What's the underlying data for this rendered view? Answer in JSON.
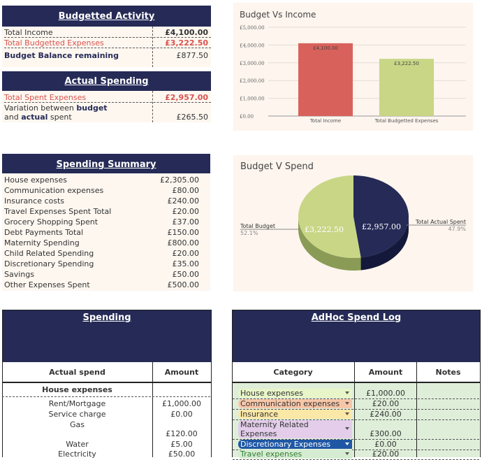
{
  "budget_activity": {
    "title": "Budgetted Activity",
    "rows": [
      {
        "label": "Total Income",
        "value": "£4,100.00"
      },
      {
        "label": "Total Budgetted Expenses",
        "value": "£3,222.50"
      },
      {
        "label": "Budget Balance remaining",
        "value": "£877.50"
      }
    ]
  },
  "actual_spending": {
    "title": "Actual Spending",
    "spent_label": "Total Spent Expenses",
    "spent_value": "£2,957.00",
    "variation_line1_pre": "Variation between ",
    "variation_line1_bold": "budget",
    "variation_line2_pre": " and ",
    "variation_line2_bold": "actual",
    "variation_line2_post": " spent",
    "variation_value": "£265.50"
  },
  "spending_summary": {
    "title": "Spending Summary",
    "rows": [
      {
        "label": "House expenses",
        "value": "£2,305.00"
      },
      {
        "label": "Communication expenses",
        "value": "£80.00"
      },
      {
        "label": "Insurance costs",
        "value": "£240.00"
      },
      {
        "label": "Travel Expenses Spent Total",
        "value": "£20.00"
      },
      {
        "label": "Grocery Shopping Spent",
        "value": "£37.00"
      },
      {
        "label": "Debt Payments Total",
        "value": "£150.00"
      },
      {
        "label": "Maternity Spending",
        "value": "£800.00"
      },
      {
        "label": "Child Related Spending",
        "value": "£20.00"
      },
      {
        "label": "Discretionary Spending",
        "value": "£35.00"
      },
      {
        "label": "Savings",
        "value": "£50.00"
      },
      {
        "label": "Other Expenses Spent",
        "value": "£500.00"
      }
    ]
  },
  "spending": {
    "title": "Spending",
    "col_actual": "Actual spend",
    "col_amount": "Amount",
    "section": "House expenses",
    "rows": [
      {
        "label": "Rent/Mortgage",
        "value": "£1,000.00"
      },
      {
        "label": "Service charge",
        "value": "£0.00"
      },
      {
        "label": "Gas",
        "value": ""
      },
      {
        "label": "",
        "value": "£120.00"
      },
      {
        "label": "Water",
        "value": "£5.00"
      },
      {
        "label": "Electricity",
        "value": "£50.00"
      }
    ]
  },
  "adhoc": {
    "title": "AdHoc Spend Log",
    "col_category": "Category",
    "col_amount": "Amount",
    "col_notes": "Notes",
    "rows": [
      {
        "category": "House expenses",
        "amount": "£1,000.00",
        "chip_bg": "#e8f5c8",
        "chip_fg": "#333333"
      },
      {
        "category": "Communication expenses",
        "amount": "£20.00",
        "chip_bg": "#f7c6a8",
        "chip_fg": "#333333"
      },
      {
        "category": "Insurance",
        "amount": "£240.00",
        "chip_bg": "#fbe7a6",
        "chip_fg": "#333333"
      },
      {
        "category": "Maternity Related Expenses",
        "amount": "£300.00",
        "chip_bg": "#e3cdea",
        "chip_fg": "#333333"
      },
      {
        "category": "Discretionary Expenses",
        "amount": "£0.00",
        "chip_bg": "#1f57a5",
        "chip_fg": "#ffffff"
      },
      {
        "category": "Travel expenses",
        "amount": "£20.00",
        "chip_bg": "#d6ecd2",
        "chip_fg": "#2e7d32"
      }
    ]
  },
  "colors": {
    "header": "#252a56",
    "income_bar": "#d9615c",
    "expenses_bar": "#c8d686",
    "pie_budget": "#c8d686",
    "pie_actual": "#252a56",
    "panel": "#fdf5ee",
    "green_cell": "#dfeed9"
  },
  "chart_data": [
    {
      "type": "bar",
      "title": "Budget Vs Income",
      "categories": [
        "Total Income",
        "Total Budgetted Expenses"
      ],
      "values": [
        4100,
        3222.5
      ],
      "value_labels": [
        "£4,100.00",
        "£3,222.50"
      ],
      "ylim": [
        0,
        5000
      ],
      "yticks": [
        "£0.00",
        "£1,000.00",
        "£2,000.00",
        "£3,000.00",
        "£4,000.00",
        "£5,000.00"
      ],
      "grid": true
    },
    {
      "type": "pie",
      "title": "Budget V Spend",
      "labels": [
        "Total Budget",
        "Total Actual Spent"
      ],
      "values": [
        3222.5,
        2957
      ],
      "value_labels": [
        "£3,222.50",
        "£2,957.00"
      ],
      "percents": [
        "52.1%",
        "47.9%"
      ]
    }
  ]
}
